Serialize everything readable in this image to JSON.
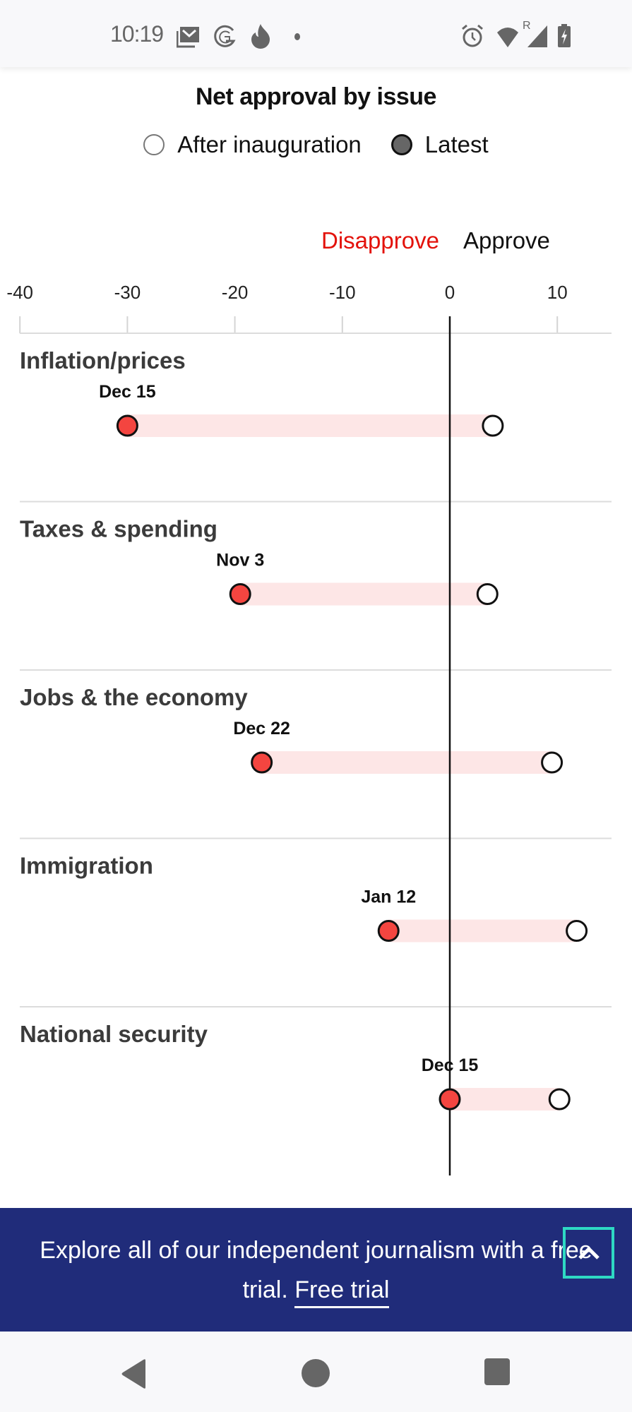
{
  "status_bar": {
    "time": "10:19",
    "left_icons": [
      "gmail-icon",
      "grammarly-icon",
      "tinder-icon",
      "dot-icon"
    ],
    "right_icons": [
      "alarm-icon",
      "wifi-icon",
      "roaming-signal-icon",
      "battery-charging-icon"
    ],
    "roaming_label": "R"
  },
  "chart_data": {
    "type": "dumbbell",
    "title": "Net approval by issue",
    "legend": [
      {
        "name": "After inauguration",
        "marker": "open-circle"
      },
      {
        "name": "Latest",
        "marker": "filled-circle"
      }
    ],
    "side_labels": {
      "negative": "Disapprove",
      "positive": "Approve"
    },
    "xlim": [
      -40,
      15
    ],
    "xticks": [
      -40,
      -30,
      -20,
      -10,
      0,
      10
    ],
    "xtick_labels": [
      "-40",
      "-30",
      "-20",
      "-10",
      "0",
      "10"
    ],
    "grid": true,
    "legend_position": "top-center",
    "series_names": [
      "After inauguration",
      "Latest"
    ],
    "categories": [
      "Inflation/prices",
      "Taxes & spending",
      "Jobs & the economy",
      "Immigration",
      "National security"
    ],
    "rows": [
      {
        "category": "Inflation/prices",
        "after_inauguration": 4,
        "latest": -30,
        "latest_date": "Dec 15"
      },
      {
        "category": "Taxes & spending",
        "after_inauguration": 3.5,
        "latest": -19.5,
        "latest_date": "Nov 3"
      },
      {
        "category": "Jobs & the economy",
        "after_inauguration": 9.5,
        "latest": -17.5,
        "latest_date": "Dec 22"
      },
      {
        "category": "Immigration",
        "after_inauguration": 11.8,
        "latest": -5.7,
        "latest_date": "Jan 12"
      },
      {
        "category": "National security",
        "after_inauguration": 10.2,
        "latest": 0,
        "latest_date": "Dec 15"
      }
    ]
  },
  "colors": {
    "latest_fill": "#f44540",
    "range_fill": "#fde6e6",
    "disapprove_text": "#e3120b",
    "promo_bg": "#202c7a",
    "promo_button_border": "#2ed9c3"
  },
  "promo": {
    "text": "Explore all of our independent journalism with a free trial.",
    "link_label": "Free trial",
    "scroll_top_icon": "chevron-up-icon"
  },
  "nav_bar": {
    "buttons": [
      "back-icon",
      "home-icon",
      "recents-icon"
    ]
  }
}
